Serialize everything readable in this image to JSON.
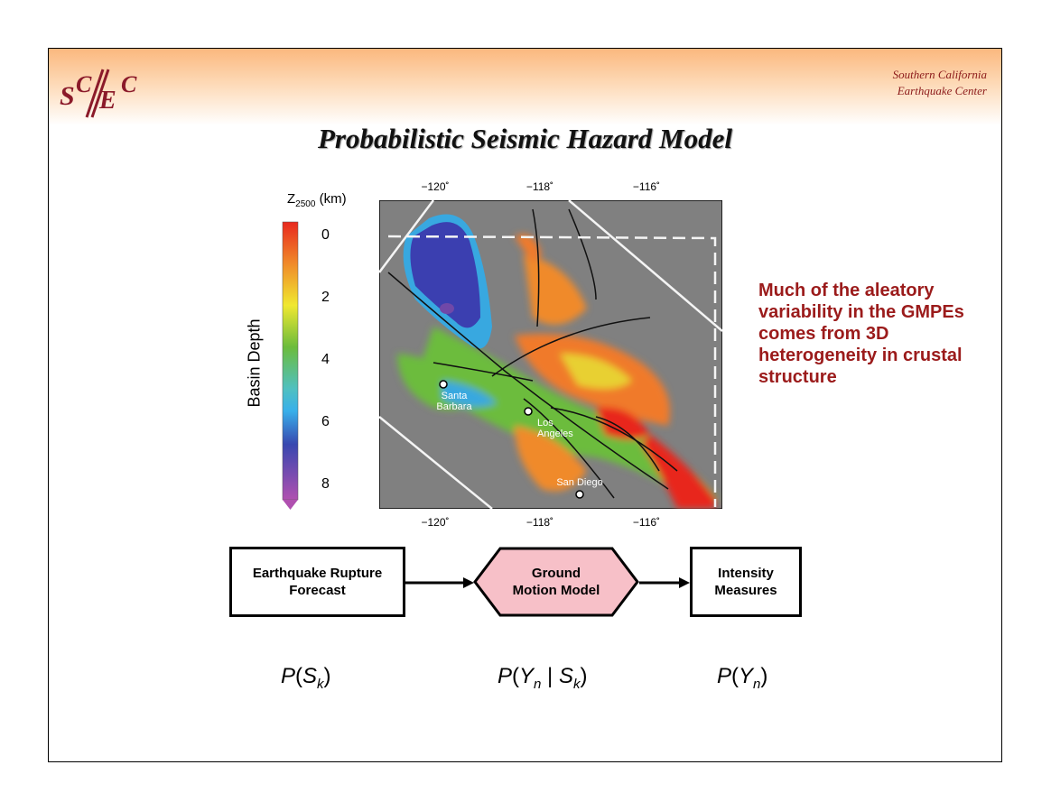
{
  "header": {
    "logo_text": "SCEC",
    "org_line1": "Southern California",
    "org_line2": "Earthquake Center"
  },
  "title": "Probabilistic Seismic Hazard Model",
  "map": {
    "colorbar_label": "Basin Depth",
    "colorbar_unit_main": "Z",
    "colorbar_unit_sub": "2500",
    "colorbar_unit_rest": " (km)",
    "colorbar_ticks": [
      "0",
      "2",
      "4",
      "6",
      "8"
    ],
    "lon_ticks_top": [
      "−120˚",
      "−118˚",
      "−116˚"
    ],
    "lon_ticks_bottom": [
      "−120˚",
      "−118˚",
      "−116˚"
    ],
    "cities": [
      {
        "line1": "Santa",
        "line2": "Barbara"
      },
      {
        "line1": "Los",
        "line2": "Angeles"
      },
      {
        "line1": "San Diego",
        "line2": ""
      }
    ],
    "colors": {
      "background": "#808080",
      "deep": "#3b3fb0",
      "shallow": "#e8281e"
    }
  },
  "note": "Much of the aleatory variability in the GMPEs comes from 3D heterogeneity in crustal structure",
  "flow": {
    "box1": {
      "line1": "Earthquake Rupture",
      "line2": "Forecast"
    },
    "box2": {
      "line1": "Ground",
      "line2": "Motion Model",
      "fill": "#f7c0c8"
    },
    "box3": {
      "line1": "Intensity",
      "line2": "Measures"
    }
  },
  "formulas": {
    "f1": {
      "p": "P",
      "a": "S",
      "a_sub": "k"
    },
    "f2": {
      "p": "P",
      "a": "Y",
      "a_sub": "n",
      "sep": " | ",
      "b": "S",
      "b_sub": "k"
    },
    "f3": {
      "p": "P",
      "a": "Y",
      "a_sub": "n"
    }
  }
}
